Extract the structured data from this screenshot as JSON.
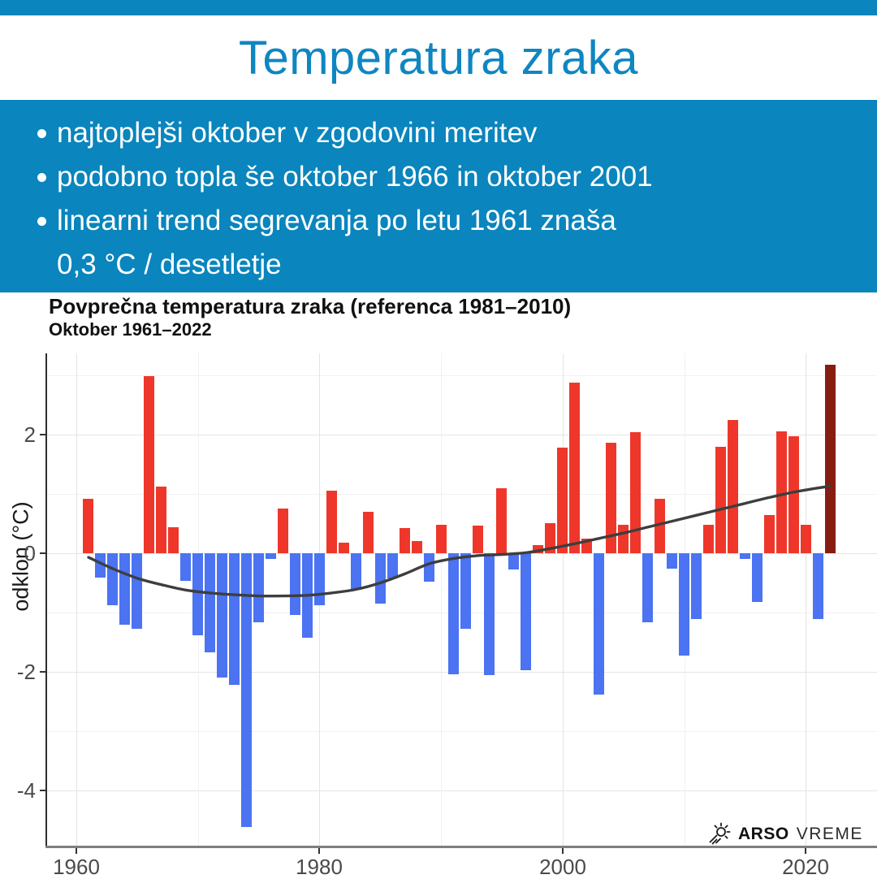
{
  "colors": {
    "banner_blue": "#0a85bd",
    "title_blue": "#0e86c1",
    "bar_positive": "#ee372a",
    "bar_negative": "#4b73f2",
    "bar_highlight": "#871c13",
    "trend_line": "#3e3e3e",
    "grid_major": "#e4e4e4",
    "grid_minor": "#f1f1f1",
    "axis_text": "#4a4a4a"
  },
  "header": {
    "title": "Temperatura zraka"
  },
  "banner": {
    "bullets": [
      "najtoplejši oktober v zgodovini meritev",
      "podobno topla še oktober 1966 in oktober 2001",
      "linearni trend segrevanja po letu 1961 znaša"
    ],
    "continuation": "0,3 °C / desetletje"
  },
  "chart": {
    "title": "Povprečna temperatura zraka (referenca 1981–2010)",
    "subtitle": "Oktober 1961–2022",
    "y_axis_label": "odklon (°C)"
  },
  "logo": {
    "arso": "ARSO",
    "vreme": "VREME"
  },
  "chart_data": {
    "type": "bar",
    "title": "Povprečna temperatura zraka (referenca 1981–2010)",
    "subtitle": "Oktober 1961–2022",
    "xlabel": "",
    "ylabel": "odklon (°C)",
    "x_ticks": [
      1960,
      1980,
      2000,
      2020
    ],
    "y_ticks": [
      2,
      0,
      -2,
      -4
    ],
    "xlim": [
      1957.6,
      2024.3
    ],
    "ylim": [
      -4.95,
      3.37
    ],
    "grid": true,
    "legend": false,
    "highlight_year": 2022,
    "years": [
      1961,
      1962,
      1963,
      1964,
      1965,
      1966,
      1967,
      1968,
      1969,
      1970,
      1971,
      1972,
      1973,
      1974,
      1975,
      1976,
      1977,
      1978,
      1979,
      1980,
      1981,
      1982,
      1983,
      1984,
      1985,
      1986,
      1987,
      1988,
      1989,
      1990,
      1991,
      1992,
      1993,
      1994,
      1995,
      1996,
      1997,
      1998,
      1999,
      2000,
      2001,
      2002,
      2003,
      2004,
      2005,
      2006,
      2007,
      2008,
      2009,
      2010,
      2011,
      2012,
      2013,
      2014,
      2015,
      2016,
      2017,
      2018,
      2019,
      2020,
      2021,
      2022
    ],
    "values": [
      0.92,
      -0.41,
      -0.87,
      -1.21,
      -1.27,
      2.98,
      1.13,
      0.44,
      -0.47,
      -1.38,
      -1.67,
      -2.1,
      -2.22,
      -4.62,
      -1.16,
      -0.1,
      0.75,
      -1.04,
      -1.43,
      -0.87,
      1.06,
      0.18,
      -0.62,
      0.7,
      -0.85,
      -0.43,
      0.43,
      0.21,
      -0.48,
      0.48,
      -2.04,
      -1.28,
      0.47,
      -2.05,
      1.09,
      -0.27,
      -1.97,
      0.14,
      0.51,
      1.78,
      2.88,
      0.24,
      -2.39,
      1.86,
      0.48,
      2.04,
      -1.16,
      0.92,
      -0.26,
      -1.73,
      -1.11,
      0.48,
      1.79,
      2.24,
      -0.1,
      -0.82,
      0.65,
      2.06,
      1.97,
      0.48,
      -1.11,
      3.18
    ],
    "trend": {
      "points": [
        [
          1961,
          -0.07
        ],
        [
          1963,
          -0.26
        ],
        [
          1965,
          -0.42
        ],
        [
          1967,
          -0.53
        ],
        [
          1969,
          -0.62
        ],
        [
          1971,
          -0.67
        ],
        [
          1973,
          -0.7
        ],
        [
          1975,
          -0.72
        ],
        [
          1977,
          -0.72
        ],
        [
          1979,
          -0.71
        ],
        [
          1981,
          -0.67
        ],
        [
          1983,
          -0.61
        ],
        [
          1985,
          -0.5
        ],
        [
          1987,
          -0.35
        ],
        [
          1989,
          -0.18
        ],
        [
          1991,
          -0.09
        ],
        [
          1993,
          -0.04
        ],
        [
          1995,
          -0.02
        ],
        [
          1997,
          0.01
        ],
        [
          1999,
          0.08
        ],
        [
          2001,
          0.16
        ],
        [
          2003,
          0.25
        ],
        [
          2005,
          0.34
        ],
        [
          2007,
          0.44
        ],
        [
          2009,
          0.54
        ],
        [
          2011,
          0.64
        ],
        [
          2013,
          0.74
        ],
        [
          2015,
          0.84
        ],
        [
          2017,
          0.94
        ],
        [
          2019,
          1.03
        ],
        [
          2021,
          1.1
        ],
        [
          2022,
          1.13
        ]
      ]
    }
  }
}
